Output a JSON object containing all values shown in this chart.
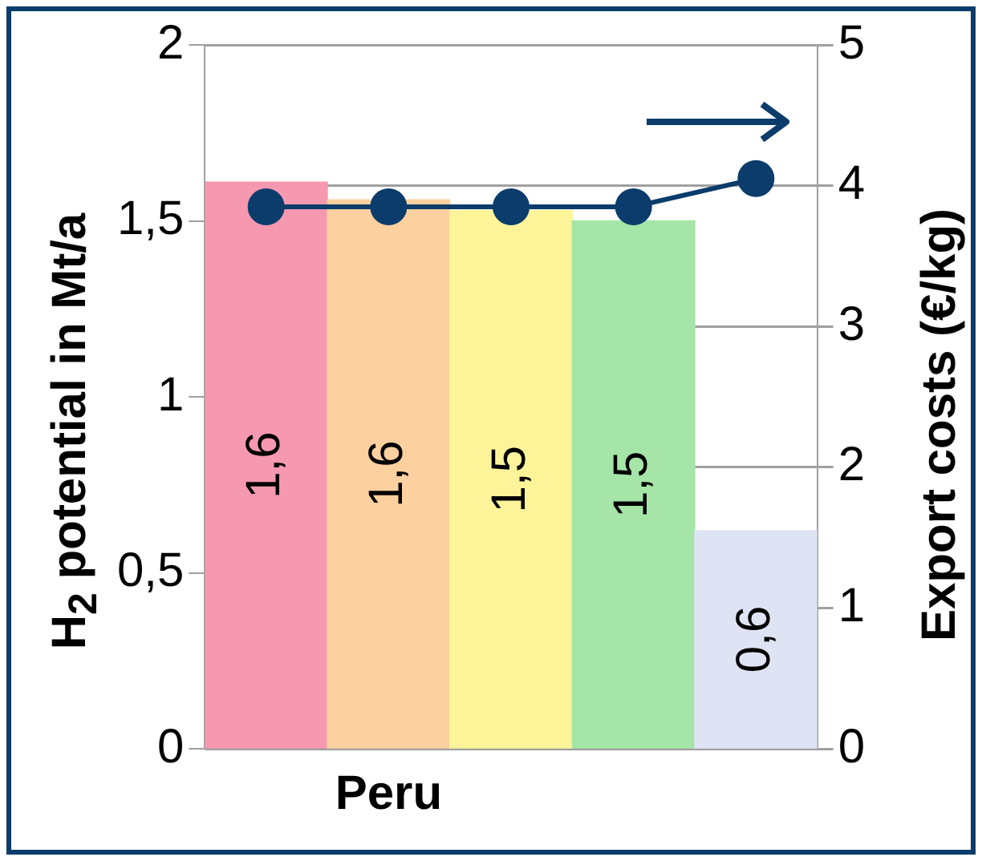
{
  "chart_data": {
    "type": "bar",
    "ylabel": "H$_{2}$ potential in Mt/a",
    "y2label": "Export costs (€/kg)",
    "categories": [
      null,
      "Peru",
      null,
      null,
      null
    ],
    "series": [
      {
        "colors": [
          "#f598b0",
          "#fdd09f",
          "#fdf49a",
          "#a5e5a8",
          "#dfe4f4"
        ],
        "values": [
          1.61,
          1.56,
          1.53,
          1.5,
          0.62
        ],
        "value_labels": [
          "1,6",
          "1,6",
          "1,5",
          "1,5",
          "0,6"
        ]
      },
      {
        "type": "line",
        "axis": "y2",
        "color": "#0b3c6b",
        "values": [
          3.85,
          3.85,
          3.85,
          3.85,
          4.05
        ]
      }
    ],
    "ylim": [
      0,
      2
    ],
    "yticks": [
      0,
      {
        "value": 0.5,
        "label": "0,5"
      },
      1,
      {
        "value": 1.5,
        "label": "1,5"
      },
      2
    ],
    "y2lim": [
      0,
      5
    ],
    "y2ticks": [
      0,
      1,
      2,
      3,
      4,
      5
    ],
    "grid": true,
    "marker": "circle"
  }
}
